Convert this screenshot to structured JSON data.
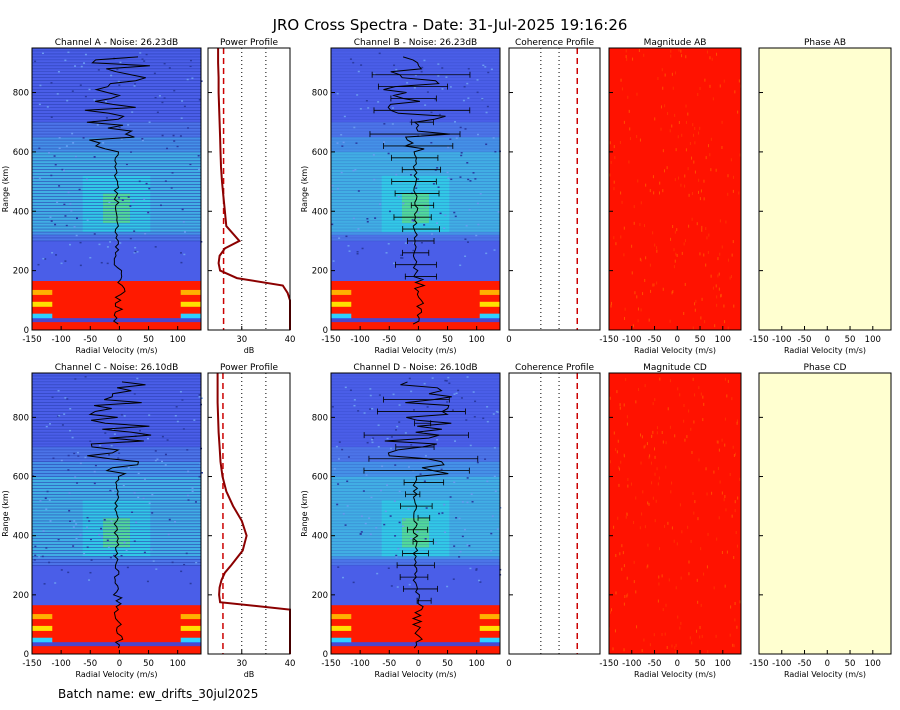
{
  "title": "JRO Cross Spectra - Date: 31-Jul-2025 19:16:26",
  "batch_label": "Batch name: ew_drifts_30jul2025",
  "rows": [
    {
      "spectra_a": {
        "title": "Channel A - Noise: 26.23dB",
        "xlabel": "Radial Velocity (m/s)",
        "ylabel": "Range (km)"
      },
      "power": {
        "title": "Power Profile",
        "xlabel": "dB"
      },
      "spectra_b": {
        "title": "Channel B - Noise: 26.23dB",
        "xlabel": "Radial Velocity (m/s)",
        "ylabel": "Range (km)"
      },
      "coherence": {
        "title": "Coherence Profile",
        "xlabel": ""
      },
      "magnitude": {
        "title": "Magnitude AB",
        "xlabel": "Radial Velocity (m/s)"
      },
      "phase": {
        "title": "Phase AB",
        "xlabel": "Radial Velocity (m/s)"
      }
    },
    {
      "spectra_a": {
        "title": "Channel C - Noise: 26.10dB",
        "xlabel": "Radial Velocity (m/s)",
        "ylabel": "Range (km)"
      },
      "power": {
        "title": "Power Profile",
        "xlabel": "dB"
      },
      "spectra_b": {
        "title": "Channel D - Noise: 26.10dB",
        "xlabel": "Radial Velocity (m/s)",
        "ylabel": "Range (km)"
      },
      "coherence": {
        "title": "Coherence Profile",
        "xlabel": ""
      },
      "magnitude": {
        "title": "Magnitude CD",
        "xlabel": "Radial Velocity (m/s)"
      },
      "phase": {
        "title": "Phase CD",
        "xlabel": "Radial Velocity (m/s)"
      }
    }
  ],
  "colors": {
    "noise_blue": "#4a5ee8",
    "echo_cyan": "#28d8e8",
    "echo_green": "#5ee07a",
    "saturated_red": "#ff1a00",
    "power_line": "#8b0000",
    "magnitude_fill": "#ff1200",
    "phase_fill": "#ffffd0"
  },
  "chart_data": {
    "type": "heatmap",
    "spectra_xlim": [
      -150,
      140
    ],
    "spectra_xticks": [
      -150,
      -100,
      -50,
      0,
      50,
      100
    ],
    "range_ylim": [
      0,
      950
    ],
    "range_yticks": [
      0,
      200,
      400,
      600,
      800
    ],
    "power_xlim": [
      23,
      40
    ],
    "power_xticks": [
      30,
      40
    ],
    "coherence_xlim": [
      0,
      1
    ],
    "coherence_xticks": [
      0
    ],
    "range_km": [
      0,
      25,
      50,
      75,
      100,
      125,
      150,
      175,
      200,
      225,
      250,
      275,
      300,
      350,
      400,
      450,
      500,
      550,
      600,
      650,
      700,
      750,
      800,
      850,
      900,
      950
    ],
    "power_profile_db": [
      [
        40,
        40,
        40,
        40,
        40,
        39.5,
        38.5,
        29,
        25.5,
        25.2,
        25.4,
        26.5,
        29.5,
        26.8,
        26.5,
        26.2,
        25.9,
        25.7,
        25.6,
        25.5,
        25.4,
        25.3,
        25.2,
        25.2,
        25.1,
        25.1
      ],
      [
        40,
        40,
        40,
        40,
        40,
        40,
        40,
        25.5,
        25.3,
        25.4,
        25.8,
        26.5,
        27.8,
        30.2,
        31.0,
        30.0,
        28.2,
        26.8,
        26.0,
        25.6,
        25.4,
        25.2,
        25.1,
        25.0,
        25.0,
        25.0
      ]
    ],
    "noise_level_db": [
      [
        26.23,
        26.23
      ],
      [
        26.1,
        26.1
      ]
    ],
    "coherence_threshold": [
      0.75,
      0.75
    ]
  }
}
